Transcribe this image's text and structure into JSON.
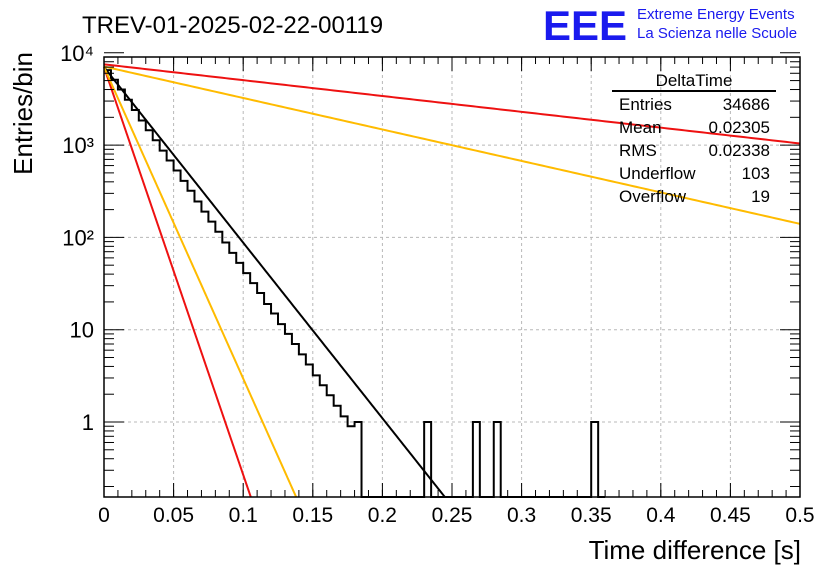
{
  "chart_data": {
    "type": "histogram",
    "title": "TREV-01-2025-02-22-00119",
    "xlabel": "Time difference [s]",
    "ylabel": "Entries/bin",
    "xlim": [
      0,
      0.5
    ],
    "ylim": [
      0.15,
      12000
    ],
    "yscale": "log",
    "grid": true,
    "x_ticks": [
      "0",
      "0.05",
      "0.1",
      "0.15",
      "0.2",
      "0.25",
      "0.3",
      "0.35",
      "0.4",
      "0.45",
      "0.5"
    ],
    "y_ticks": [
      "1",
      "10",
      "10²",
      "10³",
      "10⁴"
    ],
    "bin_width": 0.005,
    "bin_lefts": [
      0,
      0.005,
      0.01,
      0.015,
      0.02,
      0.025,
      0.03,
      0.035,
      0.04,
      0.045,
      0.05,
      0.055,
      0.06,
      0.065,
      0.07,
      0.075,
      0.08,
      0.085,
      0.09,
      0.095,
      0.1,
      0.105,
      0.11,
      0.115,
      0.12,
      0.125,
      0.13,
      0.135,
      0.14,
      0.145,
      0.15,
      0.155,
      0.16,
      0.165,
      0.17,
      0.175,
      0.18,
      0.185,
      0.19,
      0.195,
      0.2,
      0.205,
      0.21,
      0.215,
      0.22,
      0.225,
      0.23,
      0.235,
      0.24,
      0.245,
      0.25,
      0.255,
      0.26,
      0.265,
      0.27,
      0.275,
      0.28,
      0.285,
      0.29,
      0.295,
      0.3,
      0.305,
      0.31,
      0.315,
      0.32,
      0.325,
      0.33,
      0.335,
      0.34,
      0.345,
      0.35,
      0.355
    ],
    "bin_counts": [
      6500,
      5100,
      4000,
      3100,
      2400,
      1850,
      1450,
      1130,
      870,
      680,
      530,
      410,
      320,
      245,
      190,
      148,
      115,
      88,
      68,
      53,
      41,
      32,
      25,
      19,
      15,
      11.5,
      9,
      7,
      5.4,
      4.2,
      3.2,
      2.5,
      1.95,
      1.5,
      1.15,
      0.9,
      1,
      0,
      0,
      0,
      0,
      0,
      0,
      0,
      0,
      0,
      1,
      0,
      0,
      0,
      0,
      0,
      0,
      1,
      0,
      0,
      1,
      0,
      0,
      0,
      0,
      0,
      0,
      0,
      0,
      0,
      0,
      0,
      0,
      0,
      1,
      0
    ],
    "fit_lines": [
      {
        "color": "#000000",
        "y0": 7000,
        "slope_per_s": -43.8,
        "x_end": 0.25
      },
      {
        "color": "#ee1111",
        "y0": 7500,
        "slope_per_s": -3.95,
        "x_end": 0.5
      },
      {
        "color": "#ffbb00",
        "y0": 7100,
        "slope_per_s": -7.85,
        "x_end": 0.5
      },
      {
        "color": "#ee1111",
        "y0": 7000,
        "slope_per_s": -101.7,
        "x_end": 0.12
      },
      {
        "color": "#ffbb00",
        "y0": 7000,
        "slope_per_s": -77.7,
        "x_end": 0.15
      }
    ]
  },
  "stats": {
    "title": "DeltaTime",
    "rows": [
      {
        "label": "Entries",
        "value": "34686"
      },
      {
        "label": "Mean",
        "value": "0.02305"
      },
      {
        "label": "RMS",
        "value": "0.02338"
      },
      {
        "label": "Underflow",
        "value": "103"
      },
      {
        "label": "Overflow",
        "value": "19"
      }
    ]
  },
  "logo": {
    "text": "EEE",
    "line1": "Extreme Energy Events",
    "line2": "La Scienza nelle Scuole",
    "color": "#1a1aee"
  }
}
